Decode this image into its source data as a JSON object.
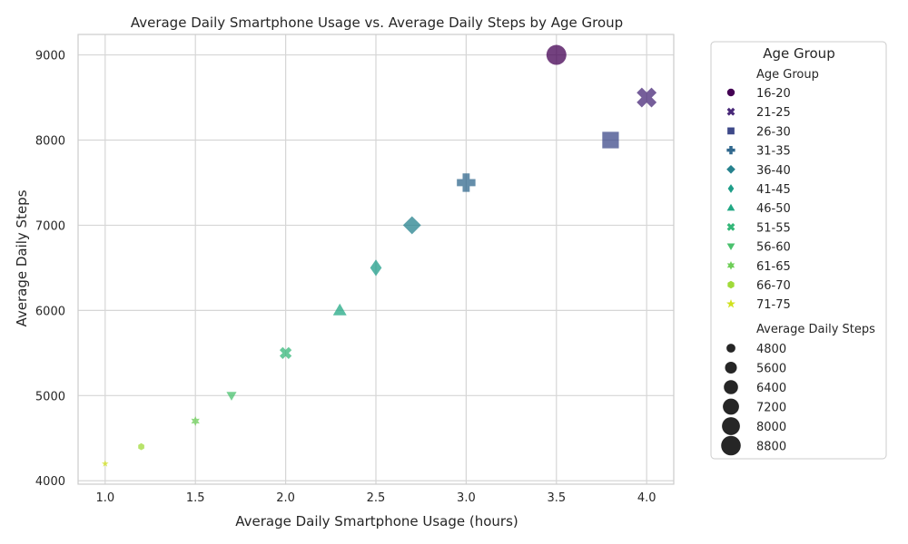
{
  "chart_data": {
    "type": "scatter",
    "title": "Average Daily Smartphone Usage vs. Average Daily Steps by Age Group",
    "xlabel": "Average Daily Smartphone Usage (hours)",
    "ylabel": "Average Daily Steps",
    "xlim": [
      0.85,
      4.15
    ],
    "ylim": [
      3960,
      9240
    ],
    "xticks": [
      "1.0",
      "1.5",
      "2.0",
      "2.5",
      "3.0",
      "3.5",
      "4.0"
    ],
    "yticks": [
      "4000",
      "5000",
      "6000",
      "7000",
      "8000",
      "9000"
    ],
    "grid": true,
    "points": [
      {
        "group": "16-20",
        "x": 3.5,
        "y": 9000,
        "color": "#440154",
        "marker": "circle"
      },
      {
        "group": "21-25",
        "x": 4.0,
        "y": 8500,
        "color": "#482878",
        "marker": "x"
      },
      {
        "group": "26-30",
        "x": 3.8,
        "y": 8000,
        "color": "#3e4989",
        "marker": "square"
      },
      {
        "group": "31-35",
        "x": 3.0,
        "y": 7500,
        "color": "#31688e",
        "marker": "plus"
      },
      {
        "group": "36-40",
        "x": 2.7,
        "y": 7000,
        "color": "#26828e",
        "marker": "diamond"
      },
      {
        "group": "41-45",
        "x": 2.5,
        "y": 6500,
        "color": "#1f9e89",
        "marker": "thin-diamond"
      },
      {
        "group": "46-50",
        "x": 2.3,
        "y": 6000,
        "color": "#22a884",
        "marker": "triangle-up"
      },
      {
        "group": "51-55",
        "x": 2.0,
        "y": 5500,
        "color": "#35b779",
        "marker": "x-small"
      },
      {
        "group": "56-60",
        "x": 1.7,
        "y": 5000,
        "color": "#4ac16d",
        "marker": "triangle-down"
      },
      {
        "group": "61-65",
        "x": 1.5,
        "y": 4700,
        "color": "#6ece58",
        "marker": "star6"
      },
      {
        "group": "66-70",
        "x": 1.2,
        "y": 4400,
        "color": "#a0da39",
        "marker": "hexagon"
      },
      {
        "group": "71-75",
        "x": 1.0,
        "y": 4200,
        "color": "#d0e11c",
        "marker": "star5"
      }
    ],
    "legend": {
      "title": "Age Group",
      "hue_title": "Age Group",
      "size_title": "Average Daily Steps",
      "size_values": [
        "4800",
        "5600",
        "6400",
        "7200",
        "8000",
        "8800"
      ],
      "position": "outside-right"
    }
  }
}
